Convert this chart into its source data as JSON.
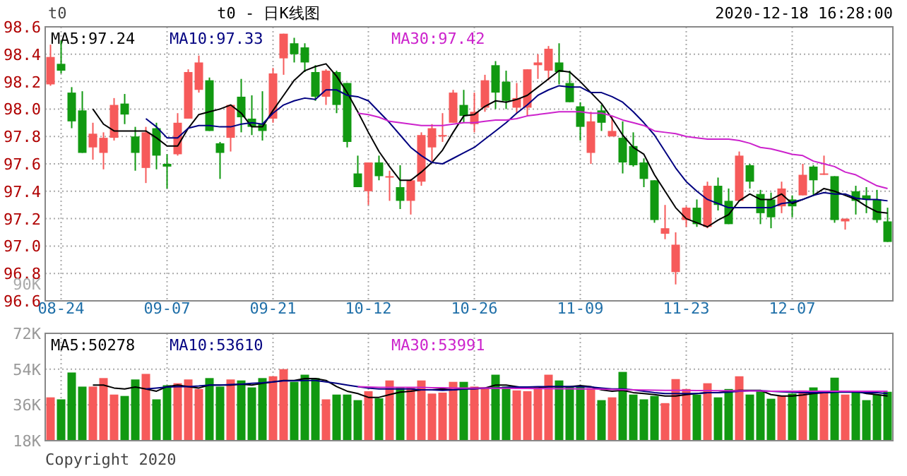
{
  "chart_data": [
    {
      "type": "candlestick",
      "title": "t0 - 日K线图",
      "subtitle": "2020-12-18 16:28:00",
      "annotations": [
        "t0",
        "90K"
      ],
      "categories": [
        null,
        "08-24",
        null,
        null,
        null,
        null,
        null,
        null,
        null,
        null,
        null,
        "09-07",
        null,
        null,
        null,
        null,
        null,
        null,
        null,
        null,
        null,
        "09-21",
        null,
        null,
        null,
        null,
        null,
        null,
        null,
        null,
        "10-12",
        null,
        null,
        null,
        null,
        null,
        null,
        null,
        null,
        null,
        "10-26",
        null,
        null,
        null,
        null,
        null,
        null,
        null,
        null,
        null,
        "11-09",
        null,
        null,
        null,
        null,
        null,
        null,
        null,
        null,
        null,
        "11-23",
        null,
        null,
        null,
        null,
        null,
        null,
        null,
        null,
        null,
        "12-07",
        null,
        null,
        null,
        null,
        null,
        null,
        null,
        null,
        null
      ],
      "ohlc": [
        [
          98.18,
          98.47,
          98.17,
          98.38
        ],
        [
          98.33,
          98.5,
          98.26,
          98.28
        ],
        [
          98.12,
          98.16,
          97.86,
          97.91
        ],
        [
          97.99,
          98.13,
          97.68,
          97.68
        ],
        [
          97.72,
          97.9,
          97.63,
          97.82
        ],
        [
          97.68,
          97.83,
          97.56,
          97.79
        ],
        [
          97.79,
          98.08,
          97.77,
          98.03
        ],
        [
          98.04,
          98.11,
          97.89,
          97.96
        ],
        [
          97.8,
          97.87,
          97.55,
          97.68
        ],
        [
          97.57,
          97.87,
          97.46,
          97.83
        ],
        [
          97.86,
          97.9,
          97.56,
          97.66
        ],
        [
          97.6,
          97.67,
          97.42,
          97.58
        ],
        [
          97.67,
          97.97,
          97.66,
          97.9
        ],
        [
          97.93,
          98.29,
          97.93,
          98.27
        ],
        [
          98.14,
          98.39,
          98.12,
          98.34
        ],
        [
          98.21,
          98.23,
          97.84,
          97.84
        ],
        [
          97.75,
          97.76,
          97.49,
          97.68
        ],
        [
          97.79,
          98.03,
          97.69,
          98.03
        ],
        [
          98.09,
          98.22,
          97.83,
          97.94
        ],
        [
          97.93,
          98.1,
          97.81,
          97.87
        ],
        [
          97.89,
          98.13,
          97.77,
          97.84
        ],
        [
          97.93,
          98.3,
          97.9,
          98.26
        ],
        [
          98.37,
          98.55,
          98.25,
          98.55
        ],
        [
          98.48,
          98.52,
          98.34,
          98.4
        ],
        [
          98.45,
          98.48,
          98.27,
          98.34
        ],
        [
          98.27,
          98.32,
          98.06,
          98.09
        ],
        [
          98.09,
          98.29,
          98.03,
          98.28
        ],
        [
          98.27,
          98.28,
          97.97,
          98.03
        ],
        [
          98.19,
          98.19,
          97.72,
          97.76
        ],
        [
          97.53,
          97.66,
          97.43,
          97.43
        ],
        [
          97.4,
          97.61,
          97.3,
          97.61
        ],
        [
          97.61,
          97.66,
          97.48,
          97.51
        ],
        [
          97.5,
          97.55,
          97.33,
          97.51
        ],
        [
          97.43,
          97.59,
          97.27,
          97.33
        ],
        [
          97.33,
          97.49,
          97.23,
          97.48
        ],
        [
          97.47,
          97.83,
          97.44,
          97.81
        ],
        [
          97.72,
          97.89,
          97.62,
          97.86
        ],
        [
          97.8,
          97.97,
          97.76,
          97.81
        ],
        [
          97.9,
          98.14,
          97.9,
          98.12
        ],
        [
          98.03,
          98.14,
          97.9,
          97.95
        ],
        [
          97.89,
          98.12,
          97.83,
          97.98
        ],
        [
          98.01,
          98.25,
          97.98,
          98.21
        ],
        [
          98.32,
          98.35,
          98.0,
          98.12
        ],
        [
          98.2,
          98.28,
          98.0,
          98.06
        ],
        [
          98.01,
          98.19,
          97.97,
          98.08
        ],
        [
          98.01,
          98.29,
          97.95,
          98.29
        ],
        [
          98.32,
          98.4,
          98.22,
          98.34
        ],
        [
          98.28,
          98.46,
          98.21,
          98.44
        ],
        [
          98.34,
          98.48,
          98.18,
          98.27
        ],
        [
          98.19,
          98.28,
          98.05,
          98.05
        ],
        [
          98.02,
          98.05,
          97.77,
          97.87
        ],
        [
          97.68,
          97.98,
          97.6,
          97.91
        ],
        [
          97.99,
          98.03,
          97.84,
          97.9
        ],
        [
          97.8,
          97.95,
          97.8,
          97.84
        ],
        [
          97.79,
          97.91,
          97.53,
          97.61
        ],
        [
          97.73,
          97.83,
          97.58,
          97.59
        ],
        [
          97.61,
          97.64,
          97.43,
          97.49
        ],
        [
          97.48,
          97.48,
          97.17,
          97.19
        ],
        [
          97.09,
          97.3,
          97.05,
          97.13
        ],
        [
          96.81,
          97.1,
          96.72,
          97.01
        ],
        [
          97.19,
          97.29,
          97.14,
          97.28
        ],
        [
          97.28,
          97.34,
          97.14,
          97.16
        ],
        [
          97.14,
          97.47,
          97.13,
          97.44
        ],
        [
          97.44,
          97.5,
          97.26,
          97.3
        ],
        [
          97.33,
          97.42,
          97.16,
          97.16
        ],
        [
          97.33,
          97.69,
          97.33,
          97.66
        ],
        [
          97.59,
          97.6,
          97.42,
          97.47
        ],
        [
          97.38,
          97.41,
          97.16,
          97.24
        ],
        [
          97.34,
          97.39,
          97.13,
          97.21
        ],
        [
          97.29,
          97.47,
          97.24,
          97.42
        ],
        [
          97.34,
          97.37,
          97.21,
          97.29
        ],
        [
          97.37,
          97.6,
          97.37,
          97.52
        ],
        [
          97.58,
          97.59,
          97.37,
          97.48
        ],
        [
          97.52,
          97.66,
          97.52,
          97.53
        ],
        [
          97.51,
          97.51,
          97.17,
          97.19
        ],
        [
          97.18,
          97.2,
          97.12,
          97.2
        ],
        [
          97.4,
          97.44,
          97.23,
          97.33
        ],
        [
          97.37,
          97.43,
          97.24,
          97.34
        ],
        [
          97.34,
          97.41,
          97.17,
          97.19
        ],
        [
          97.18,
          97.28,
          97.03,
          97.03
        ]
      ],
      "colors": [
        "#f65a5a",
        "#119911",
        "#119911",
        "#119911",
        "#f65a5a",
        "#f65a5a",
        "#f65a5a",
        "#119911",
        "#119911",
        "#f65a5a",
        "#119911",
        "#119911",
        "#f65a5a",
        "#f65a5a",
        "#f65a5a",
        "#119911",
        "#119911",
        "#f65a5a",
        "#119911",
        "#119911",
        "#119911",
        "#f65a5a",
        "#f65a5a",
        "#119911",
        "#119911",
        "#119911",
        "#f65a5a",
        "#119911",
        "#119911",
        "#119911",
        "#f65a5a",
        "#119911",
        "#f65a5a",
        "#119911",
        "#f65a5a",
        "#f65a5a",
        "#f65a5a",
        "#f65a5a",
        "#f65a5a",
        "#119911",
        "#f65a5a",
        "#f65a5a",
        "#119911",
        "#119911",
        "#f65a5a",
        "#f65a5a",
        "#f65a5a",
        "#f65a5a",
        "#119911",
        "#119911",
        "#119911",
        "#f65a5a",
        "#119911",
        "#f65a5a",
        "#119911",
        "#119911",
        "#119911",
        "#119911",
        "#f65a5a",
        "#f65a5a",
        "#f65a5a",
        "#119911",
        "#f65a5a",
        "#119911",
        "#119911",
        "#f65a5a",
        "#119911",
        "#119911",
        "#119911",
        "#f65a5a",
        "#119911",
        "#f65a5a",
        "#119911",
        "#f65a5a",
        "#119911",
        "#f65a5a",
        "#119911",
        "#119911",
        "#119911",
        "#119911"
      ],
      "series": [
        {
          "type": "line",
          "name": "MA5:97.24",
          "color": "#000000",
          "values": [
            null,
            null,
            null,
            null,
            98.0,
            97.89,
            97.84,
            97.84,
            97.84,
            97.84,
            97.79,
            97.73,
            97.73,
            97.86,
            97.96,
            97.98,
            98.0,
            98.03,
            97.97,
            97.87,
            97.87,
            97.99,
            98.1,
            98.21,
            98.28,
            98.31,
            98.33,
            98.24,
            98.12,
            97.98,
            97.83,
            97.69,
            97.58,
            97.48,
            97.48,
            97.54,
            97.61,
            97.7,
            97.83,
            97.95,
            97.96,
            98.02,
            98.06,
            98.05,
            98.07,
            98.1,
            98.16,
            98.22,
            98.28,
            98.27,
            98.2,
            98.12,
            98.04,
            97.93,
            97.81,
            97.72,
            97.67,
            97.52,
            97.4,
            97.28,
            97.2,
            97.17,
            97.14,
            97.19,
            97.23,
            97.33,
            97.38,
            97.34,
            97.34,
            97.38,
            97.31,
            97.34,
            97.37,
            97.42,
            97.4,
            97.37,
            97.34,
            97.29,
            97.25,
            97.24
          ]
        },
        {
          "type": "line",
          "name": "MA10:97.33",
          "color": "#000080",
          "values": [
            null,
            null,
            null,
            null,
            null,
            null,
            null,
            null,
            null,
            97.93,
            97.87,
            97.79,
            97.79,
            97.86,
            97.88,
            97.88,
            97.87,
            97.87,
            97.89,
            97.9,
            97.89,
            97.97,
            98.03,
            98.06,
            98.08,
            98.07,
            98.14,
            98.14,
            98.1,
            98.09,
            98.06,
            97.98,
            97.9,
            97.81,
            97.72,
            97.66,
            97.61,
            97.6,
            97.64,
            97.68,
            97.72,
            97.78,
            97.84,
            97.9,
            97.97,
            98.03,
            98.1,
            98.14,
            98.17,
            98.16,
            98.16,
            98.12,
            98.12,
            98.09,
            98.05,
            97.98,
            97.9,
            97.81,
            97.69,
            97.57,
            97.47,
            97.4,
            97.34,
            97.31,
            97.28,
            97.28,
            97.28,
            97.28,
            97.28,
            97.31,
            97.32,
            97.34,
            97.37,
            97.39,
            97.38,
            97.38,
            97.35,
            97.34,
            97.34,
            97.33
          ]
        },
        {
          "type": "line",
          "name": "MA30:97.42",
          "color": "#cc22cc",
          "values": [
            null,
            null,
            null,
            null,
            null,
            null,
            null,
            null,
            null,
            null,
            null,
            null,
            null,
            null,
            null,
            null,
            null,
            null,
            null,
            null,
            null,
            null,
            null,
            null,
            null,
            null,
            null,
            null,
            null,
            97.97,
            97.96,
            97.94,
            97.91,
            97.9,
            97.89,
            97.88,
            97.88,
            97.88,
            97.89,
            97.9,
            97.9,
            97.91,
            97.92,
            97.92,
            97.93,
            97.95,
            97.96,
            97.97,
            97.98,
            97.98,
            97.98,
            97.97,
            97.97,
            97.95,
            97.92,
            97.9,
            97.88,
            97.84,
            97.83,
            97.82,
            97.8,
            97.79,
            97.78,
            97.78,
            97.78,
            97.77,
            97.75,
            97.72,
            97.71,
            97.69,
            97.67,
            97.66,
            97.62,
            97.6,
            97.58,
            97.54,
            97.52,
            97.48,
            97.44,
            97.42
          ]
        }
      ],
      "ylim": [
        96.6,
        98.6
      ],
      "yticks": [
        {
          "value": 96.6,
          "label": "96.6"
        },
        {
          "value": 96.8,
          "label": "96.8"
        },
        {
          "value": 97.0,
          "label": "97.0"
        },
        {
          "value": 97.2,
          "label": "97.2"
        },
        {
          "value": 97.4,
          "label": "97.4"
        },
        {
          "value": 97.6,
          "label": "97.6"
        },
        {
          "value": 97.8,
          "label": "97.8"
        },
        {
          "value": 98.0,
          "label": "98.0"
        },
        {
          "value": 98.2,
          "label": "98.2"
        },
        {
          "value": 98.4,
          "label": "98.4"
        },
        {
          "value": 98.6,
          "label": "98.6"
        }
      ],
      "grid": true,
      "legend": "top"
    },
    {
      "type": "bar",
      "annotations": [
        "Copyright 2020"
      ],
      "tick_labels": "y",
      "categories": [
        null,
        null,
        null,
        null,
        null,
        null,
        null,
        null,
        null,
        null,
        null,
        null,
        null,
        null,
        null,
        null,
        null,
        null,
        null,
        null,
        null,
        null,
        null,
        null,
        null,
        null,
        null,
        null,
        null,
        null,
        null,
        null,
        null,
        null,
        null,
        null,
        null,
        null,
        null,
        null,
        null,
        null,
        null,
        null,
        null,
        null,
        null,
        null,
        null,
        null,
        null,
        null,
        null,
        null,
        null,
        null,
        null,
        null,
        null,
        null,
        null,
        null,
        null,
        null,
        null,
        null,
        null,
        null,
        null,
        null,
        null,
        null,
        null,
        null,
        null,
        null,
        null,
        null,
        null,
        null
      ],
      "series": [
        {
          "type": "bar",
          "colors": [
            "#f65a5a",
            "#119911",
            "#119911",
            "#119911",
            "#f65a5a",
            "#f65a5a",
            "#f65a5a",
            "#119911",
            "#119911",
            "#f65a5a",
            "#119911",
            "#119911",
            "#f65a5a",
            "#f65a5a",
            "#f65a5a",
            "#119911",
            "#119911",
            "#f65a5a",
            "#119911",
            "#119911",
            "#119911",
            "#f65a5a",
            "#f65a5a",
            "#119911",
            "#119911",
            "#119911",
            "#f65a5a",
            "#119911",
            "#119911",
            "#119911",
            "#f65a5a",
            "#119911",
            "#f65a5a",
            "#119911",
            "#f65a5a",
            "#f65a5a",
            "#f65a5a",
            "#f65a5a",
            "#f65a5a",
            "#119911",
            "#f65a5a",
            "#f65a5a",
            "#119911",
            "#119911",
            "#f65a5a",
            "#f65a5a",
            "#f65a5a",
            "#f65a5a",
            "#119911",
            "#119911",
            "#119911",
            "#f65a5a",
            "#119911",
            "#f65a5a",
            "#119911",
            "#119911",
            "#119911",
            "#119911",
            "#f65a5a",
            "#f65a5a",
            "#f65a5a",
            "#119911",
            "#f65a5a",
            "#119911",
            "#119911",
            "#f65a5a",
            "#119911",
            "#119911",
            "#119911",
            "#f65a5a",
            "#119911",
            "#f65a5a",
            "#119911",
            "#f65a5a",
            "#119911",
            "#f65a5a",
            "#119911",
            "#119911",
            "#119911",
            "#119911"
          ],
          "values": [
            39800,
            38800,
            52300,
            45200,
            45200,
            49500,
            41200,
            40500,
            48800,
            51600,
            38800,
            45900,
            46900,
            48800,
            44000,
            49500,
            45200,
            48800,
            48300,
            44800,
            49500,
            50400,
            54000,
            47600,
            51200,
            49500,
            38800,
            41200,
            41200,
            38400,
            42900,
            39300,
            48300,
            44800,
            44800,
            48300,
            41700,
            42200,
            47600,
            47600,
            45200,
            44500,
            51200,
            45200,
            43300,
            42900,
            45200,
            51200,
            48300,
            45200,
            45200,
            44500,
            38400,
            39800,
            52600,
            41200,
            38800,
            40500,
            36900,
            49000,
            44000,
            41200,
            46900,
            39800,
            44000,
            50400,
            41200,
            42900,
            39100,
            40500,
            41700,
            43300,
            44800,
            42900,
            49700,
            41200,
            42400,
            38400,
            41200,
            42600
          ]
        },
        {
          "type": "line",
          "name": "MA5:50278",
          "color": "#000000",
          "values": [
            null,
            null,
            null,
            null,
            46000,
            46000,
            44500,
            44000,
            45000,
            44000,
            42900,
            45200,
            46000,
            45200,
            44500,
            46000,
            46000,
            46000,
            46400,
            46000,
            46900,
            47600,
            48300,
            48300,
            49300,
            49300,
            48300,
            45200,
            42900,
            41700,
            39800,
            39800,
            41200,
            42400,
            42900,
            43600,
            43600,
            44000,
            43600,
            44000,
            44500,
            44500,
            46000,
            46000,
            45200,
            44500,
            44500,
            45200,
            45200,
            45200,
            45700,
            45200,
            43600,
            42900,
            43300,
            42200,
            41700,
            41200,
            40500,
            40500,
            41200,
            41700,
            42200,
            42200,
            42900,
            43300,
            43300,
            43300,
            41200,
            40500,
            40500,
            41000,
            41700,
            42200,
            42400,
            42900,
            42900,
            41700,
            41200,
            40500
          ]
        },
        {
          "type": "line",
          "name": "MA10:53610",
          "color": "#000080",
          "values": [
            null,
            null,
            null,
            null,
            null,
            null,
            null,
            null,
            null,
            44000,
            44500,
            45000,
            45200,
            45200,
            45500,
            46000,
            46000,
            46200,
            46400,
            46900,
            47100,
            47600,
            48100,
            48100,
            48300,
            48300,
            47600,
            46900,
            46000,
            45200,
            44500,
            44000,
            44000,
            44000,
            44000,
            43600,
            43600,
            43300,
            43600,
            44000,
            44000,
            44500,
            44500,
            44800,
            45000,
            45000,
            45200,
            45200,
            45200,
            45200,
            45200,
            45000,
            44500,
            44000,
            44000,
            43600,
            42900,
            42200,
            41700,
            41700,
            41700,
            41700,
            42200,
            42200,
            42400,
            42900,
            43100,
            43100,
            42900,
            42600,
            42400,
            42200,
            42200,
            42200,
            42400,
            42400,
            42400,
            42200,
            42200,
            41700
          ]
        },
        {
          "type": "line",
          "name": "MA30:53991",
          "color": "#cc22cc",
          "values": [
            null,
            null,
            null,
            null,
            null,
            null,
            null,
            null,
            null,
            null,
            null,
            null,
            null,
            null,
            null,
            null,
            null,
            null,
            null,
            null,
            null,
            null,
            null,
            null,
            null,
            null,
            null,
            null,
            null,
            45200,
            45000,
            44800,
            44800,
            44800,
            44800,
            44800,
            44600,
            44600,
            44500,
            44500,
            44500,
            44500,
            44400,
            44400,
            44300,
            44300,
            44200,
            44200,
            44100,
            44100,
            44000,
            44000,
            43900,
            43800,
            43700,
            43600,
            43500,
            43400,
            43300,
            43300,
            43300,
            43200,
            43200,
            43100,
            43100,
            43000,
            43000,
            43000,
            42900,
            42900,
            42900,
            42900,
            42900,
            42900,
            42900,
            42900,
            42900,
            42900,
            42900,
            42900
          ]
        }
      ],
      "ylim": [
        18000,
        72000
      ],
      "yticks": [
        {
          "value": 18000,
          "label": "18K"
        },
        {
          "value": 36000,
          "label": "36K"
        },
        {
          "value": 54000,
          "label": "54K"
        },
        {
          "value": 72000,
          "label": "72K"
        }
      ],
      "grid": true,
      "legend": "top"
    }
  ]
}
